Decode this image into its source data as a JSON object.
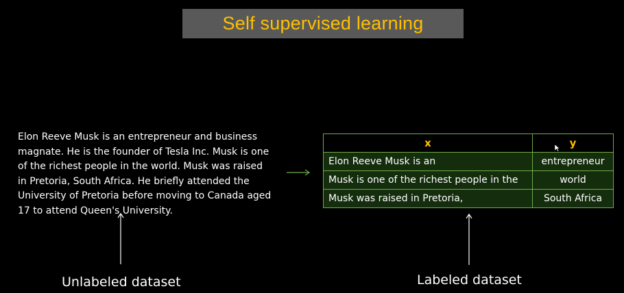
{
  "slide": {
    "title": "Self supervised learning",
    "colors": {
      "background": "#000000",
      "title_box": "#595959",
      "title_text": "#ffc000",
      "table_border": "#70ad47",
      "table_row_fill": "#142d0d",
      "header_text": "#ffc000"
    }
  },
  "paragraph": {
    "lines": [
      "Elon Reeve Musk is an entrepreneur and business",
      "magnate. He is the founder of Tesla Inc. Musk is one",
      "of the richest people in the world. Musk was raised",
      "in Pretoria, South Africa. He briefly attended the",
      "University of Pretoria before moving to Canada aged",
      "17 to attend Queen's University."
    ]
  },
  "table": {
    "headers": [
      "x",
      "y"
    ],
    "rows": [
      [
        "Elon Reeve Musk is an",
        "entrepreneur"
      ],
      [
        "Musk is one of the richest people in the",
        "world"
      ],
      [
        "Musk was raised in Pretoria,",
        "South Africa"
      ]
    ]
  },
  "captions": {
    "left": "Unlabeled dataset",
    "right": "Labeled dataset"
  },
  "icons": {
    "right_arrow": "arrow-right-icon",
    "up_arrow": "arrow-up-icon",
    "cursor": "mouse-cursor-icon"
  }
}
